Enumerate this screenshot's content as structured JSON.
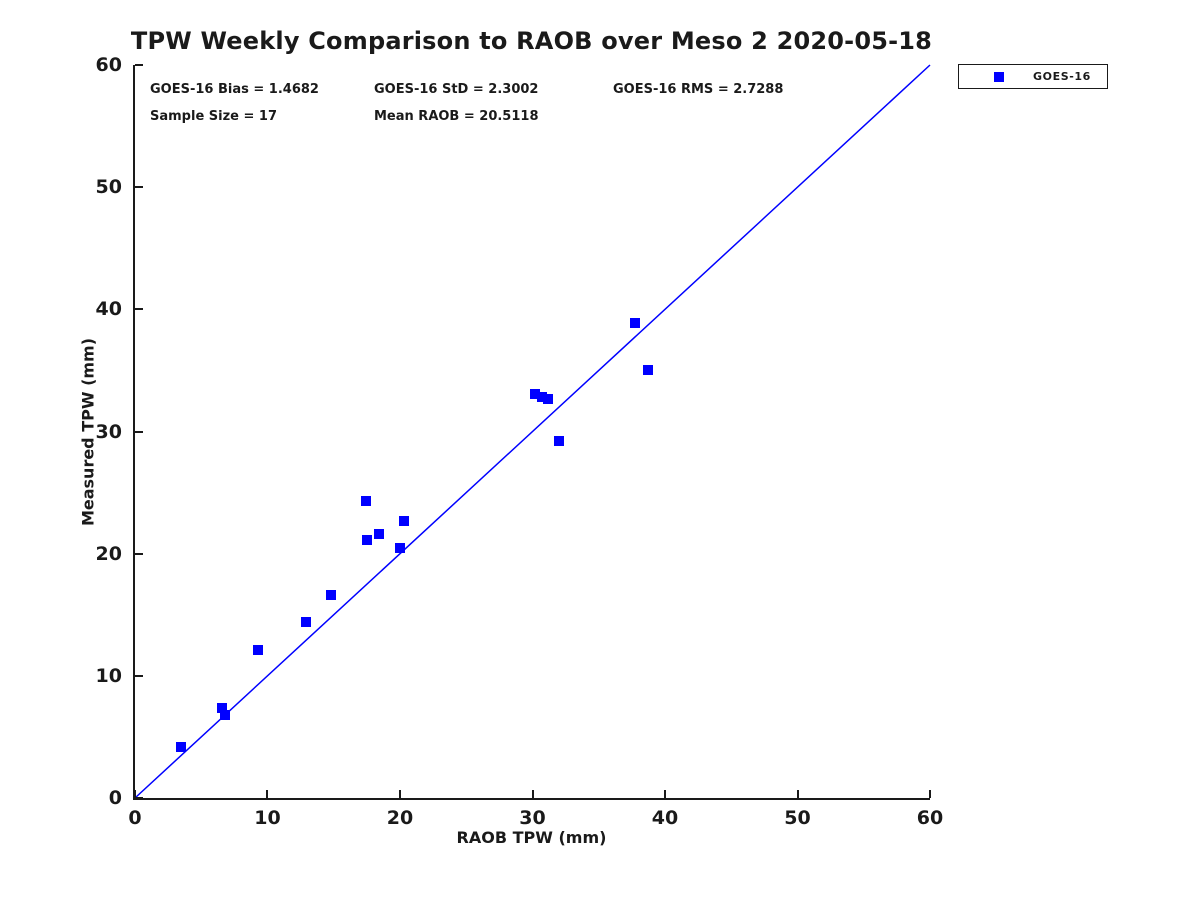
{
  "title": "TPW Weekly Comparison to RAOB over Meso 2 2020-05-18",
  "stats": {
    "bias": "GOES-16 Bias = 1.4682",
    "std": "GOES-16 StD = 2.3002",
    "rms": "GOES-16 RMS = 2.7288",
    "sample_size": "Sample Size = 17",
    "mean_raob": "Mean RAOB = 20.5118"
  },
  "colors": {
    "series_blue": "#0000ff",
    "axis_black": "#1a1a1a"
  },
  "legend": {
    "entries": [
      {
        "label": "GOES-16",
        "marker": "square-icon",
        "color": "#0000ff"
      }
    ]
  },
  "chart_data": {
    "type": "scatter",
    "title": "TPW Weekly Comparison to RAOB over Meso 2 2020-05-18",
    "xlabel": "RAOB TPW (mm)",
    "ylabel": "Measured TPW (mm)",
    "xlim": [
      0,
      60
    ],
    "ylim": [
      0,
      60
    ],
    "xticks": [
      0,
      10,
      20,
      30,
      40,
      50,
      60
    ],
    "yticks": [
      0,
      10,
      20,
      30,
      40,
      50,
      60
    ],
    "grid": false,
    "legend_position": "outside-top-right",
    "reference_line": {
      "from": [
        0,
        0
      ],
      "to": [
        60,
        60
      ],
      "color": "#0000ff",
      "width": 1.5
    },
    "series": [
      {
        "name": "GOES-16",
        "marker": "square",
        "color": "#0000ff",
        "points": [
          [
            3.5,
            4.2
          ],
          [
            6.6,
            7.4
          ],
          [
            6.8,
            6.8
          ],
          [
            9.3,
            12.1
          ],
          [
            12.9,
            14.4
          ],
          [
            14.8,
            16.6
          ],
          [
            17.4,
            24.3
          ],
          [
            17.5,
            21.1
          ],
          [
            18.4,
            21.6
          ],
          [
            20.0,
            20.5
          ],
          [
            20.3,
            22.7
          ],
          [
            30.2,
            33.1
          ],
          [
            30.7,
            32.8
          ],
          [
            31.2,
            32.7
          ],
          [
            32.0,
            29.2
          ],
          [
            37.7,
            38.9
          ],
          [
            38.7,
            35.0
          ]
        ]
      }
    ]
  }
}
